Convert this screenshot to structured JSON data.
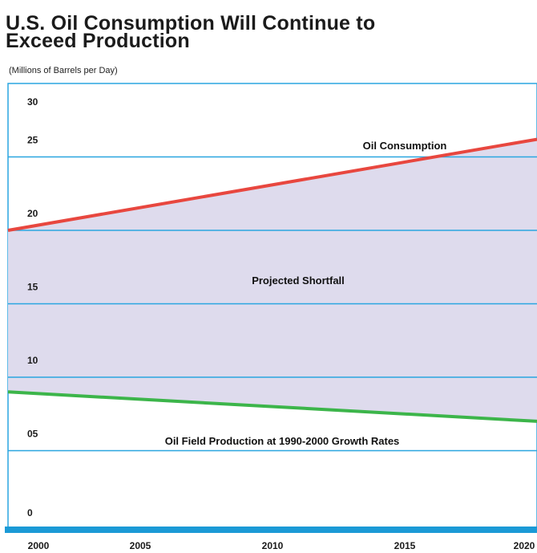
{
  "title_line1": "U.S. Oil Consumption Will Continue to",
  "title_line2": "Exceed Production",
  "subtitle": "(Millions of Barrels per Day)",
  "colors": {
    "consumption": "#e8473f",
    "production": "#3cb54a",
    "shortfall_fill": "#dedbed",
    "grid": "#2aa6e0",
    "baseline": "#1b9ad6"
  },
  "chart_data": {
    "type": "line",
    "x": [
      2000,
      2020
    ],
    "xlim": [
      2000,
      2020
    ],
    "ylim": [
      0,
      30
    ],
    "series": [
      {
        "name": "Oil Consumption",
        "values": [
          20.0,
          26.2
        ]
      },
      {
        "name": "Oil Field Production at 1990-2000 Growth Rates",
        "values": [
          9.0,
          7.0
        ]
      }
    ],
    "shaded_region": "Projected Shortfall",
    "annotations": [
      "Oil Consumption",
      "Projected Shortfall",
      "Oil Field Production at 1990-2000 Growth Rates"
    ],
    "y_ticks": [
      {
        "value": 0,
        "label": "0"
      },
      {
        "value": 5,
        "label": "05"
      },
      {
        "value": 10,
        "label": "10"
      },
      {
        "value": 15,
        "label": "15"
      },
      {
        "value": 20,
        "label": "20"
      },
      {
        "value": 25,
        "label": "25"
      },
      {
        "value": 30,
        "label": "30"
      }
    ],
    "x_ticks": [
      {
        "value": 2000,
        "label": "2000"
      },
      {
        "value": 2005,
        "label": "2005"
      },
      {
        "value": 2010,
        "label": "2010"
      },
      {
        "value": 2015,
        "label": "2015"
      },
      {
        "value": 2020,
        "label": "2020"
      }
    ],
    "grid": true
  }
}
